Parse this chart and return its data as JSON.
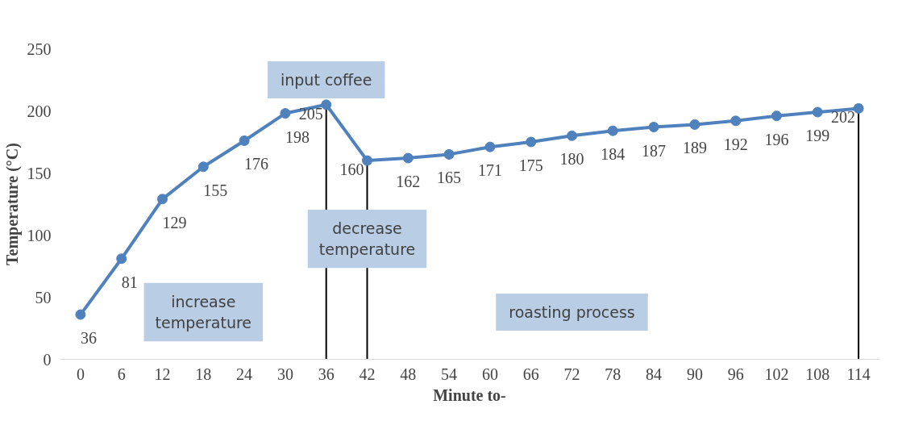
{
  "chart_data": {
    "type": "line",
    "xlabel": "Minute to-",
    "ylabel": "Temperature (°C)",
    "categories": [
      "0",
      "6",
      "12",
      "18",
      "24",
      "30",
      "36",
      "42",
      "48",
      "54",
      "60",
      "66",
      "72",
      "78",
      "84",
      "90",
      "96",
      "102",
      "108",
      "114"
    ],
    "values": [
      36,
      81,
      129,
      155,
      176,
      198,
      205,
      160,
      162,
      165,
      171,
      175,
      180,
      184,
      187,
      189,
      192,
      196,
      199,
      202
    ],
    "color": "#4f81bd",
    "marker": "circle",
    "line_style": "solid",
    "data_labels": true,
    "grid": false,
    "ylim": [
      0,
      250
    ],
    "yticks": [
      0,
      50,
      100,
      150,
      200,
      250
    ],
    "ref_lines": [
      {
        "axis": "x",
        "value": "36",
        "color": "#000000"
      },
      {
        "axis": "x",
        "value": "42",
        "color": "#000000"
      },
      {
        "axis": "x",
        "value": "114",
        "color": "#000000"
      }
    ],
    "annotations": [
      "input coffee",
      "decrease temperature",
      "increase temperature",
      "roasting process"
    ]
  }
}
